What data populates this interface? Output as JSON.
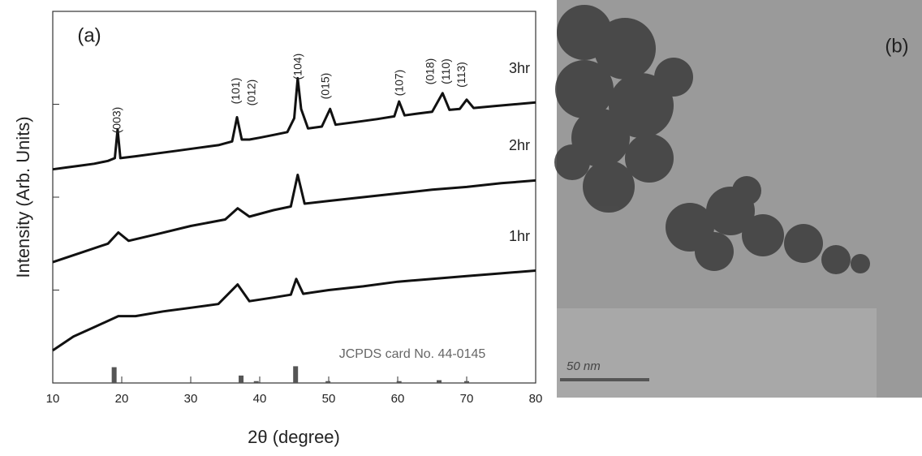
{
  "chart_data": {
    "type": "line",
    "panel_label": "(a)",
    "xlabel": "2θ (degree)",
    "ylabel": "Intensity (Arb. Units)",
    "xlim": [
      10,
      80
    ],
    "xticks": [
      10,
      20,
      30,
      40,
      50,
      60,
      70,
      80
    ],
    "ylim": [
      0,
      4
    ],
    "yticks": [
      0,
      1,
      2,
      3,
      4
    ],
    "series": [
      {
        "name": "3hr",
        "color": "#111111",
        "x": [
          10,
          12,
          14,
          16,
          18,
          19,
          19.4,
          19.8,
          22,
          25,
          28,
          31,
          34,
          36,
          36.7,
          37.4,
          38.5,
          40,
          42,
          44,
          45,
          45.5,
          46,
          47,
          49,
          50.2,
          51,
          54,
          57,
          59.5,
          60.2,
          61,
          63,
          65,
          66.5,
          67.5,
          69,
          70,
          71,
          74,
          77,
          80
        ],
        "values": [
          2.3,
          2.32,
          2.34,
          2.36,
          2.39,
          2.42,
          2.73,
          2.42,
          2.44,
          2.47,
          2.5,
          2.53,
          2.56,
          2.6,
          2.86,
          2.62,
          2.62,
          2.64,
          2.67,
          2.7,
          2.85,
          3.28,
          2.95,
          2.74,
          2.76,
          2.95,
          2.78,
          2.81,
          2.84,
          2.87,
          3.03,
          2.88,
          2.9,
          2.92,
          3.12,
          2.94,
          2.95,
          3.05,
          2.96,
          2.98,
          3.0,
          3.02
        ]
      },
      {
        "name": "2hr",
        "color": "#111111",
        "x": [
          10,
          14,
          18,
          19.5,
          21,
          25,
          30,
          35,
          36.8,
          38.5,
          42,
          44.5,
          45.5,
          46.5,
          50,
          55,
          60,
          65,
          70,
          75,
          80
        ],
        "values": [
          1.3,
          1.4,
          1.5,
          1.62,
          1.53,
          1.6,
          1.69,
          1.76,
          1.88,
          1.79,
          1.86,
          1.9,
          2.24,
          1.93,
          1.96,
          2.0,
          2.04,
          2.08,
          2.11,
          2.15,
          2.18
        ]
      },
      {
        "name": "1hr",
        "color": "#111111",
        "x": [
          10,
          13,
          16,
          19.5,
          22,
          26,
          30,
          34,
          36.8,
          38.5,
          42,
          44.5,
          45.3,
          46.3,
          50,
          55,
          60,
          65,
          70,
          75,
          80
        ],
        "values": [
          0.35,
          0.5,
          0.6,
          0.72,
          0.72,
          0.77,
          0.81,
          0.85,
          1.06,
          0.88,
          0.92,
          0.95,
          1.12,
          0.96,
          1.0,
          1.04,
          1.09,
          1.12,
          1.15,
          1.18,
          1.21
        ]
      }
    ],
    "reference": {
      "name": "JCPDS card No. 44-0145",
      "color": "#555555",
      "x": [
        18.9,
        37.3,
        39.5,
        45.2,
        49.9,
        60.2,
        66.0,
        70.0
      ],
      "values": [
        0.17,
        0.08,
        0.02,
        0.18,
        0.02,
        0.02,
        0.03,
        0.02
      ]
    },
    "peak_labels": [
      {
        "text": "(003)",
        "x": 19.4
      },
      {
        "text": "(101)",
        "x": 36.6
      },
      {
        "text": "(012)",
        "x": 38.9
      },
      {
        "text": "(104)",
        "x": 45.6
      },
      {
        "text": "(015)",
        "x": 49.6
      },
      {
        "text": "(107)",
        "x": 60.3
      },
      {
        "text": "(018)",
        "x": 64.8
      },
      {
        "text": "(110)",
        "x": 67.1
      },
      {
        "text": "(113)",
        "x": 69.3
      }
    ]
  },
  "image": {
    "panel_label": "(b)",
    "scale_bar": "50 nm"
  }
}
